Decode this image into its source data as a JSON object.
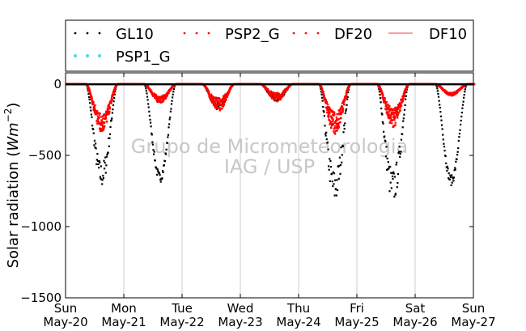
{
  "chart_data": {
    "type": "scatter",
    "ylabel": "Solar radiation",
    "ylabel_unit_base": "Wm",
    "ylabel_unit_exp": "−2",
    "ylim": [
      -1500,
      80
    ],
    "xlim_days": [
      0,
      7
    ],
    "yticks": [
      {
        "value": 0,
        "label": "0"
      },
      {
        "value": -500,
        "label": "−500"
      },
      {
        "value": -1000,
        "label": "−1000"
      },
      {
        "value": -1500,
        "label": "−1500"
      }
    ],
    "xticks": [
      {
        "day": 0,
        "weekday": "Sun",
        "date": "May-20"
      },
      {
        "day": 1,
        "weekday": "Mon",
        "date": "May-21"
      },
      {
        "day": 2,
        "weekday": "Tue",
        "date": "May-22"
      },
      {
        "day": 3,
        "weekday": "Wed",
        "date": "May-23"
      },
      {
        "day": 4,
        "weekday": "Thu",
        "date": "May-24"
      },
      {
        "day": 5,
        "weekday": "Fri",
        "date": "May-25"
      },
      {
        "day": 6,
        "weekday": "Sat",
        "date": "May-26"
      },
      {
        "day": 7,
        "weekday": "Sun",
        "date": "May-27"
      }
    ],
    "grid": "vertical",
    "legend_placement": "top",
    "watermark": [
      "Grupo de Micrometeorologia",
      "IAG / USP"
    ],
    "series": [
      {
        "name": "GL10",
        "style": "dots",
        "color": "#000000",
        "daily_peaks": [
          -730,
          -690,
          -190,
          -120,
          -850,
          -850,
          -710
        ],
        "daily_spread": [
          0.25,
          0.1,
          0.3,
          0.3,
          0.3,
          0.3,
          0.1
        ]
      },
      {
        "name": "PSP2_G",
        "style": "dots",
        "color": "#ff0000",
        "daily_peaks": [
          -340,
          -130,
          -190,
          -120,
          -350,
          -300,
          -80
        ],
        "daily_spread": [
          0.4,
          0.35,
          0.5,
          0.5,
          0.45,
          0.45,
          0.25
        ]
      },
      {
        "name": "DF20",
        "style": "dots",
        "color": "#ff0000",
        "daily_peaks": [
          -340,
          -130,
          -190,
          -120,
          -350,
          -300,
          -80
        ],
        "daily_spread": [
          0.4,
          0.35,
          0.5,
          0.5,
          0.45,
          0.45,
          0.25
        ]
      },
      {
        "name": "DF10",
        "style": "line",
        "color": "#ff6060",
        "values": []
      },
      {
        "name": "PSP1_G",
        "style": "dots",
        "color": "#40e0d0",
        "values": []
      }
    ]
  }
}
